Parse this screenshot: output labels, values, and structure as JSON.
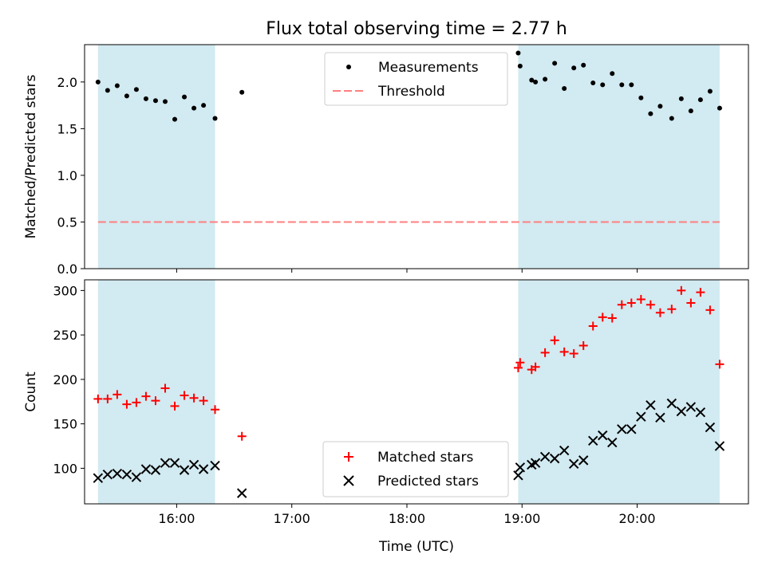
{
  "title": "Flux total observing time = 2.77 h",
  "colors": {
    "shade": "#add8e6",
    "threshold": "#ff7f7f",
    "measurements": "#000000",
    "matched": "#ff0000",
    "predicted": "#000000"
  },
  "chart_data": [
    {
      "type": "scatter",
      "ylabel": "Matched/Predicted stars",
      "ylim": [
        0,
        2.4
      ],
      "yticks": [
        0.0,
        0.5,
        1.0,
        1.5,
        2.0
      ],
      "ytick_labels": [
        "0.0",
        "0.5",
        "1.0",
        "1.5",
        "2.0"
      ],
      "xlim": [
        "15:12",
        "20:58"
      ],
      "legend_position": "top-center",
      "shaded_intervals": [
        [
          "15:19",
          "16:20"
        ],
        [
          "18:58",
          "20:43"
        ]
      ],
      "threshold": {
        "name": "Threshold",
        "y": 0.5,
        "x_start": "15:19",
        "x_end": "20:43"
      },
      "series": [
        {
          "name": "Measurements",
          "marker": "dot",
          "points": [
            [
              "15:19",
              2.0
            ],
            [
              "15:24",
              1.91
            ],
            [
              "15:29",
              1.96
            ],
            [
              "15:34",
              1.85
            ],
            [
              "15:39",
              1.92
            ],
            [
              "15:44",
              1.82
            ],
            [
              "15:49",
              1.8
            ],
            [
              "15:54",
              1.79
            ],
            [
              "15:59",
              1.6
            ],
            [
              "16:04",
              1.84
            ],
            [
              "16:09",
              1.72
            ],
            [
              "16:14",
              1.75
            ],
            [
              "16:20",
              1.61
            ],
            [
              "16:34",
              1.89
            ],
            [
              "18:58",
              2.31
            ],
            [
              "18:59",
              2.17
            ],
            [
              "19:05",
              2.02
            ],
            [
              "19:07",
              2.0
            ],
            [
              "19:12",
              2.03
            ],
            [
              "19:17",
              2.2
            ],
            [
              "19:22",
              1.93
            ],
            [
              "19:27",
              2.15
            ],
            [
              "19:32",
              2.18
            ],
            [
              "19:37",
              1.99
            ],
            [
              "19:42",
              1.97
            ],
            [
              "19:47",
              2.09
            ],
            [
              "19:52",
              1.97
            ],
            [
              "19:57",
              1.97
            ],
            [
              "20:02",
              1.83
            ],
            [
              "20:07",
              1.66
            ],
            [
              "20:12",
              1.74
            ],
            [
              "20:18",
              1.61
            ],
            [
              "20:23",
              1.82
            ],
            [
              "20:28",
              1.69
            ],
            [
              "20:33",
              1.81
            ],
            [
              "20:38",
              1.9
            ],
            [
              "20:43",
              1.72
            ]
          ]
        }
      ]
    },
    {
      "type": "scatter",
      "xlabel": "Time (UTC)",
      "ylabel": "Count",
      "ylim": [
        60,
        312
      ],
      "yticks": [
        100,
        150,
        200,
        250,
        300
      ],
      "ytick_labels": [
        "100",
        "150",
        "200",
        "250",
        "300"
      ],
      "xticks": [
        "16:00",
        "17:00",
        "18:00",
        "19:00",
        "20:00"
      ],
      "xtick_labels": [
        "16:00",
        "17:00",
        "18:00",
        "19:00",
        "20:00"
      ],
      "xlim": [
        "15:12",
        "20:58"
      ],
      "legend_position": "bottom-center",
      "shaded_intervals": [
        [
          "15:19",
          "16:20"
        ],
        [
          "18:58",
          "20:43"
        ]
      ],
      "series": [
        {
          "name": "Matched stars",
          "marker": "plus",
          "points": [
            [
              "15:19",
              178
            ],
            [
              "15:24",
              178
            ],
            [
              "15:29",
              183
            ],
            [
              "15:34",
              172
            ],
            [
              "15:39",
              174
            ],
            [
              "15:44",
              181
            ],
            [
              "15:49",
              176
            ],
            [
              "15:54",
              190
            ],
            [
              "15:59",
              170
            ],
            [
              "16:04",
              182
            ],
            [
              "16:09",
              179
            ],
            [
              "16:14",
              176
            ],
            [
              "16:20",
              166
            ],
            [
              "16:34",
              136
            ],
            [
              "18:58",
              213
            ],
            [
              "18:59",
              219
            ],
            [
              "19:05",
              211
            ],
            [
              "19:07",
              214
            ],
            [
              "19:12",
              230
            ],
            [
              "19:17",
              244
            ],
            [
              "19:22",
              231
            ],
            [
              "19:27",
              229
            ],
            [
              "19:32",
              238
            ],
            [
              "19:37",
              260
            ],
            [
              "19:42",
              270
            ],
            [
              "19:47",
              269
            ],
            [
              "19:52",
              284
            ],
            [
              "19:57",
              286
            ],
            [
              "20:02",
              290
            ],
            [
              "20:07",
              284
            ],
            [
              "20:12",
              275
            ],
            [
              "20:18",
              279
            ],
            [
              "20:23",
              300
            ],
            [
              "20:28",
              286
            ],
            [
              "20:33",
              298
            ],
            [
              "20:38",
              278
            ],
            [
              "20:43",
              217
            ]
          ]
        },
        {
          "name": "Predicted stars",
          "marker": "x",
          "points": [
            [
              "15:19",
              89
            ],
            [
              "15:24",
              93
            ],
            [
              "15:29",
              94
            ],
            [
              "15:34",
              93
            ],
            [
              "15:39",
              90
            ],
            [
              "15:44",
              99
            ],
            [
              "15:49",
              98
            ],
            [
              "15:54",
              106
            ],
            [
              "15:59",
              106
            ],
            [
              "16:04",
              98
            ],
            [
              "16:09",
              104
            ],
            [
              "16:14",
              99
            ],
            [
              "16:20",
              103
            ],
            [
              "16:34",
              72
            ],
            [
              "18:58",
              92
            ],
            [
              "18:59",
              101
            ],
            [
              "19:05",
              104
            ],
            [
              "19:07",
              106
            ],
            [
              "19:12",
              113
            ],
            [
              "19:17",
              111
            ],
            [
              "19:22",
              120
            ],
            [
              "19:27",
              105
            ],
            [
              "19:32",
              109
            ],
            [
              "19:37",
              131
            ],
            [
              "19:42",
              137
            ],
            [
              "19:47",
              129
            ],
            [
              "19:52",
              144
            ],
            [
              "19:57",
              144
            ],
            [
              "20:02",
              158
            ],
            [
              "20:07",
              171
            ],
            [
              "20:12",
              157
            ],
            [
              "20:18",
              173
            ],
            [
              "20:23",
              164
            ],
            [
              "20:28",
              169
            ],
            [
              "20:33",
              163
            ],
            [
              "20:38",
              146
            ],
            [
              "20:43",
              125
            ]
          ]
        }
      ]
    }
  ]
}
